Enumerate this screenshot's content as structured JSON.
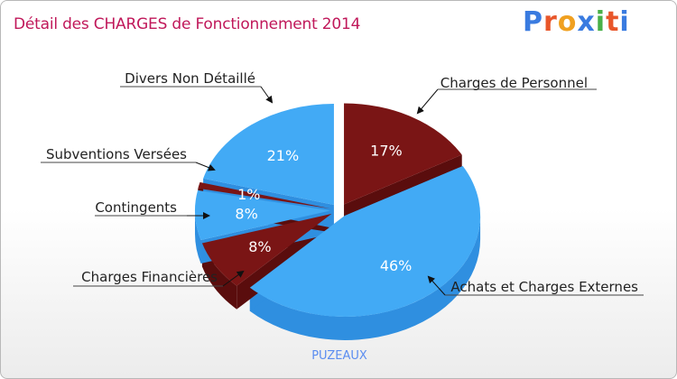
{
  "title": "Détail des CHARGES de Fonctionnement 2014",
  "logo": {
    "letters": [
      "P",
      "r",
      "o",
      "x",
      "i",
      "t",
      "i"
    ],
    "colors": [
      "#3a7be0",
      "#e8562a",
      "#f0a020",
      "#3a7be0",
      "#49b048",
      "#e8562a",
      "#3a7be0"
    ]
  },
  "city": "PUZEAUX",
  "colors": {
    "blue": "#42aaf5",
    "blue_side": "#2f8fe0",
    "red": "#7a1515",
    "red_side": "#5a0d0d",
    "title": "#c0185a"
  },
  "chart_data": {
    "type": "pie",
    "title": "Détail des CHARGES de Fonctionnement 2014",
    "subtitle": "PUZEAUX",
    "slices": [
      {
        "name": "Charges de Personnel",
        "percent": 17,
        "label": "17%",
        "color": "red"
      },
      {
        "name": "Achats et Charges Externes",
        "percent": 46,
        "label": "46%",
        "color": "blue"
      },
      {
        "name": "Charges Financières",
        "percent": 8,
        "label": "8%",
        "color": "red"
      },
      {
        "name": "Contingents",
        "percent": 8,
        "label": "8%",
        "color": "blue"
      },
      {
        "name": "Subventions Versées",
        "percent": 1,
        "label": "1%",
        "color": "red"
      },
      {
        "name": "Divers Non Détaillé",
        "percent": 21,
        "label": "21%",
        "color": "blue"
      }
    ]
  }
}
